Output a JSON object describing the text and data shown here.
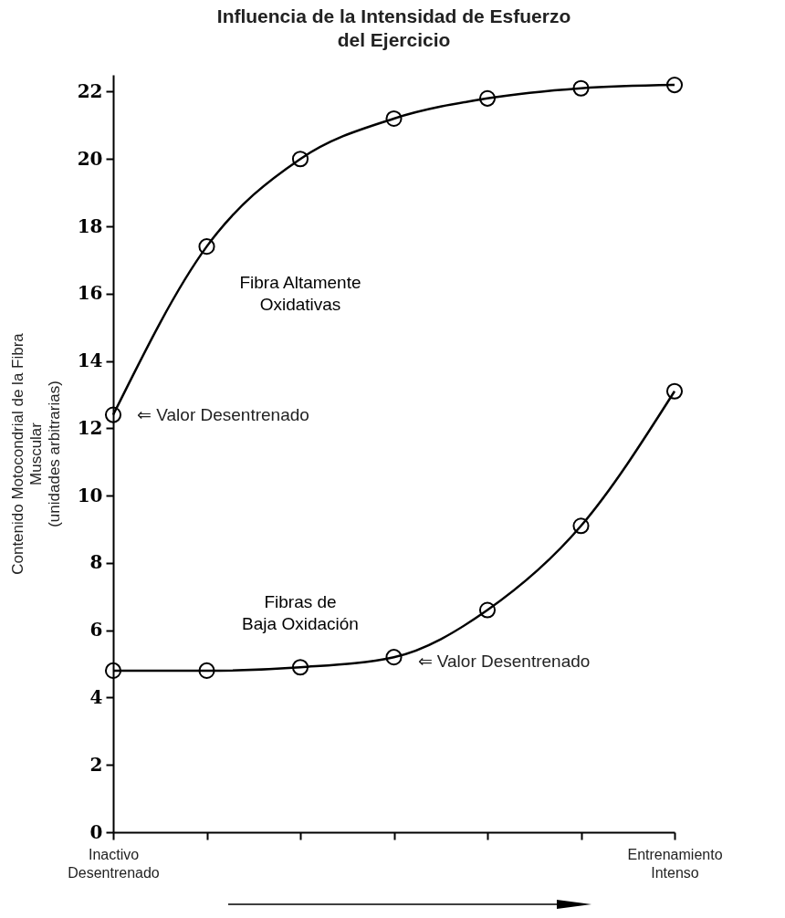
{
  "chart_data": {
    "type": "line",
    "title": "Influencia de la Intensidad de Esfuerzo\ndel Ejercicio",
    "ylabel": "Contenido Motocondrial de la Fibra\nMuscular\n(unidades arbitrarias)",
    "categories": [
      "Inactivo\nDesentrenado",
      null,
      null,
      null,
      null,
      null,
      "Entrenamiento\nIntenso"
    ],
    "series": [
      {
        "name": "Fibra Altamente\nOxidativas",
        "color": "#000000",
        "values": [
          12.4,
          17.4,
          20.0,
          21.2,
          21.8,
          22.1,
          22.2
        ]
      },
      {
        "name": "Fibras de\nBaja Oxidación",
        "color": "#000000",
        "values": [
          4.8,
          4.8,
          4.9,
          5.2,
          6.6,
          9.1,
          13.1
        ]
      }
    ],
    "ylim": [
      0,
      22.5
    ],
    "yticks": [
      0,
      2,
      4,
      6,
      8,
      10,
      12,
      14,
      16,
      18,
      20,
      22
    ],
    "grid": false,
    "marker": "circle",
    "line_style": "solid",
    "annotations": [
      {
        "text": "⇐ Valor Desentrenado",
        "x": "Inactivo\nDesentrenado",
        "y": 12.4
      },
      "⇐ Valor Desentrenado"
    ]
  }
}
